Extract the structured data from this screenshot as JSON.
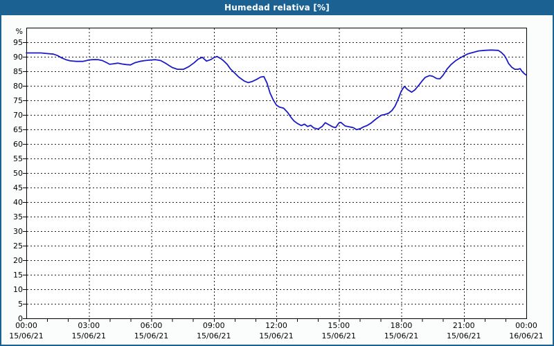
{
  "window": {
    "title": "Humedad relativa [%]"
  },
  "colors": {
    "titlebar_bg": "#1b6293",
    "titlebar_text": "#ffffff",
    "frame_border": "#1b6293",
    "canvas_bg": "#fbfdfd",
    "plot_bg": "#ffffff",
    "plot_border": "#000000",
    "grid": "#1c1c1c",
    "label": "#000000",
    "line": "#1a1ac8"
  },
  "chart_data": {
    "type": "line",
    "title": "Humedad relativa [%]",
    "ylabel": "",
    "xlabel": "",
    "y_axis_unit": "%",
    "ylim": [
      0,
      100
    ],
    "xlim": [
      0,
      24
    ],
    "grid": "dashed",
    "legend": "none",
    "y_tick_values": [
      0,
      5,
      10,
      15,
      20,
      25,
      30,
      35,
      40,
      45,
      50,
      55,
      60,
      65,
      70,
      75,
      80,
      85,
      90,
      95
    ],
    "y_tick_labels": [
      "0",
      "5",
      "10",
      "15",
      "20",
      "25",
      "30",
      "35",
      "40",
      "45",
      "50",
      "55",
      "60",
      "65",
      "70",
      "75",
      "80",
      "85",
      "90",
      "95"
    ],
    "x_minor_tick_every_hours": 1,
    "x_major_tick_every_hours": 3,
    "x_ticks": [
      {
        "hour": 0,
        "time": "00:00",
        "date": "15/06/21"
      },
      {
        "hour": 3,
        "time": "03:00",
        "date": "15/06/21"
      },
      {
        "hour": 6,
        "time": "06:00",
        "date": "15/06/21"
      },
      {
        "hour": 9,
        "time": "09:00",
        "date": "15/06/21"
      },
      {
        "hour": 12,
        "time": "12:00",
        "date": "15/06/21"
      },
      {
        "hour": 15,
        "time": "15:00",
        "date": "15/06/21"
      },
      {
        "hour": 18,
        "time": "18:00",
        "date": "15/06/21"
      },
      {
        "hour": 21,
        "time": "21:00",
        "date": "15/06/21"
      },
      {
        "hour": 24,
        "time": "00:00",
        "date": "16/06/21"
      }
    ],
    "series": [
      {
        "name": "Humedad relativa [%]",
        "color": "#1a1ac8",
        "points": [
          [
            0.0,
            91.3
          ],
          [
            0.35,
            91.3
          ],
          [
            0.7,
            91.3
          ],
          [
            1.0,
            91.1
          ],
          [
            1.3,
            90.9
          ],
          [
            1.5,
            90.4
          ],
          [
            1.7,
            89.6
          ],
          [
            1.9,
            89.0
          ],
          [
            2.1,
            88.6
          ],
          [
            2.4,
            88.4
          ],
          [
            2.7,
            88.4
          ],
          [
            2.85,
            88.6
          ],
          [
            3.0,
            88.9
          ],
          [
            3.2,
            89.0
          ],
          [
            3.45,
            89.0
          ],
          [
            3.65,
            88.7
          ],
          [
            3.85,
            88.0
          ],
          [
            4.0,
            87.4
          ],
          [
            4.2,
            87.6
          ],
          [
            4.4,
            87.8
          ],
          [
            4.6,
            87.5
          ],
          [
            4.8,
            87.3
          ],
          [
            5.0,
            87.2
          ],
          [
            5.2,
            87.9
          ],
          [
            5.45,
            88.4
          ],
          [
            5.7,
            88.7
          ],
          [
            6.0,
            88.9
          ],
          [
            6.2,
            89.0
          ],
          [
            6.45,
            88.7
          ],
          [
            6.7,
            87.7
          ],
          [
            7.0,
            86.3
          ],
          [
            7.25,
            85.7
          ],
          [
            7.55,
            85.7
          ],
          [
            7.8,
            86.6
          ],
          [
            8.05,
            87.9
          ],
          [
            8.25,
            89.2
          ],
          [
            8.45,
            89.8
          ],
          [
            8.65,
            88.5
          ],
          [
            8.85,
            89.0
          ],
          [
            9.0,
            89.7
          ],
          [
            9.15,
            90.1
          ],
          [
            9.35,
            89.3
          ],
          [
            9.5,
            88.4
          ],
          [
            9.65,
            87.3
          ],
          [
            9.8,
            85.8
          ],
          [
            10.0,
            84.4
          ],
          [
            10.2,
            83.0
          ],
          [
            10.45,
            81.7
          ],
          [
            10.65,
            81.1
          ],
          [
            10.85,
            81.5
          ],
          [
            11.05,
            82.2
          ],
          [
            11.25,
            83.0
          ],
          [
            11.4,
            83.2
          ],
          [
            11.55,
            81.0
          ],
          [
            11.7,
            77.5
          ],
          [
            11.85,
            75.2
          ],
          [
            12.0,
            73.4
          ],
          [
            12.15,
            72.7
          ],
          [
            12.35,
            72.3
          ],
          [
            12.55,
            70.8
          ],
          [
            12.7,
            69.2
          ],
          [
            12.85,
            67.9
          ],
          [
            13.0,
            67.1
          ],
          [
            13.2,
            66.3
          ],
          [
            13.35,
            66.8
          ],
          [
            13.5,
            66.0
          ],
          [
            13.65,
            66.4
          ],
          [
            13.8,
            65.5
          ],
          [
            14.0,
            65.1
          ],
          [
            14.2,
            66.0
          ],
          [
            14.35,
            67.3
          ],
          [
            14.5,
            66.7
          ],
          [
            14.7,
            65.9
          ],
          [
            14.85,
            65.6
          ],
          [
            15.0,
            67.2
          ],
          [
            15.1,
            67.4
          ],
          [
            15.3,
            66.2
          ],
          [
            15.5,
            65.9
          ],
          [
            15.7,
            65.6
          ],
          [
            15.85,
            64.9
          ],
          [
            16.05,
            65.3
          ],
          [
            16.2,
            65.9
          ],
          [
            16.35,
            66.3
          ],
          [
            16.55,
            67.2
          ],
          [
            16.7,
            68.1
          ],
          [
            16.9,
            69.2
          ],
          [
            17.05,
            69.9
          ],
          [
            17.2,
            70.1
          ],
          [
            17.4,
            70.6
          ],
          [
            17.55,
            71.5
          ],
          [
            17.7,
            73.0
          ],
          [
            17.85,
            75.4
          ],
          [
            18.0,
            78.2
          ],
          [
            18.15,
            79.8
          ],
          [
            18.3,
            78.7
          ],
          [
            18.5,
            77.8
          ],
          [
            18.65,
            78.6
          ],
          [
            18.85,
            80.3
          ],
          [
            19.0,
            81.7
          ],
          [
            19.15,
            82.9
          ],
          [
            19.35,
            83.5
          ],
          [
            19.5,
            83.3
          ],
          [
            19.7,
            82.5
          ],
          [
            19.85,
            82.4
          ],
          [
            20.0,
            83.6
          ],
          [
            20.2,
            85.8
          ],
          [
            20.4,
            87.4
          ],
          [
            20.6,
            88.6
          ],
          [
            20.8,
            89.5
          ],
          [
            21.0,
            90.3
          ],
          [
            21.2,
            91.0
          ],
          [
            21.45,
            91.5
          ],
          [
            21.7,
            92.0
          ],
          [
            22.0,
            92.2
          ],
          [
            22.3,
            92.3
          ],
          [
            22.65,
            92.2
          ],
          [
            22.8,
            91.5
          ],
          [
            22.95,
            90.4
          ],
          [
            23.05,
            89.2
          ],
          [
            23.15,
            87.7
          ],
          [
            23.3,
            86.4
          ],
          [
            23.45,
            85.7
          ],
          [
            23.6,
            85.7
          ],
          [
            23.7,
            85.9
          ],
          [
            23.8,
            84.9
          ],
          [
            23.9,
            84.2
          ],
          [
            24.0,
            83.7
          ]
        ]
      }
    ]
  }
}
